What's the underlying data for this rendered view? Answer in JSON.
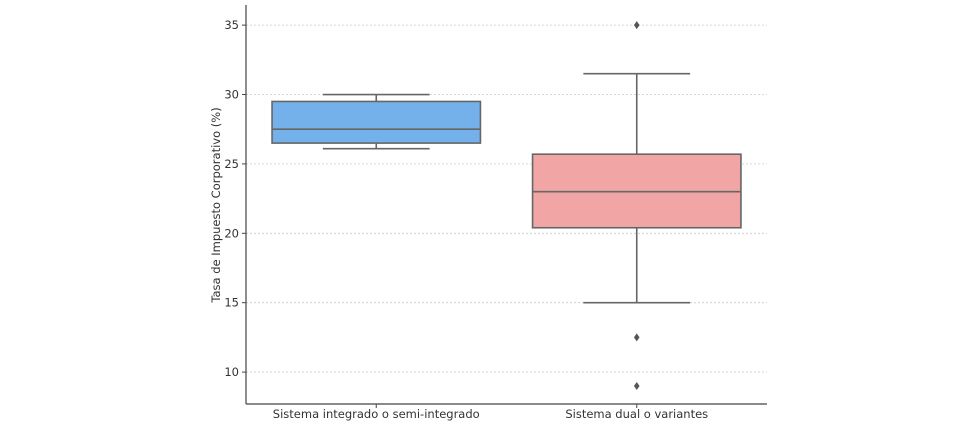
{
  "chart_data": {
    "type": "box",
    "title": "",
    "xlabel": "",
    "ylabel": "Tasa de Impuesto Corporativo (%)",
    "ylim": [
      7.7,
      36.45
    ],
    "yticks": [
      10,
      15,
      20,
      25,
      30,
      35
    ],
    "grid": "horizontal dotted",
    "categories": [
      "Sistema integrado o semi-integrado",
      "Sistema dual o variantes"
    ],
    "boxes": [
      {
        "name": "Sistema integrado o semi-integrado",
        "whisker_low": 26.1,
        "q1": 26.5,
        "median": 27.5,
        "q3": 29.5,
        "whisker_high": 30,
        "outliers": [],
        "color": "#74b0ea"
      },
      {
        "name": "Sistema dual o variantes",
        "whisker_low": 15,
        "q1": 20.4,
        "median": 23,
        "q3": 25.7,
        "whisker_high": 31.5,
        "outliers": [
          35,
          12.5,
          9
        ],
        "color": "#f1a5a5"
      }
    ]
  }
}
